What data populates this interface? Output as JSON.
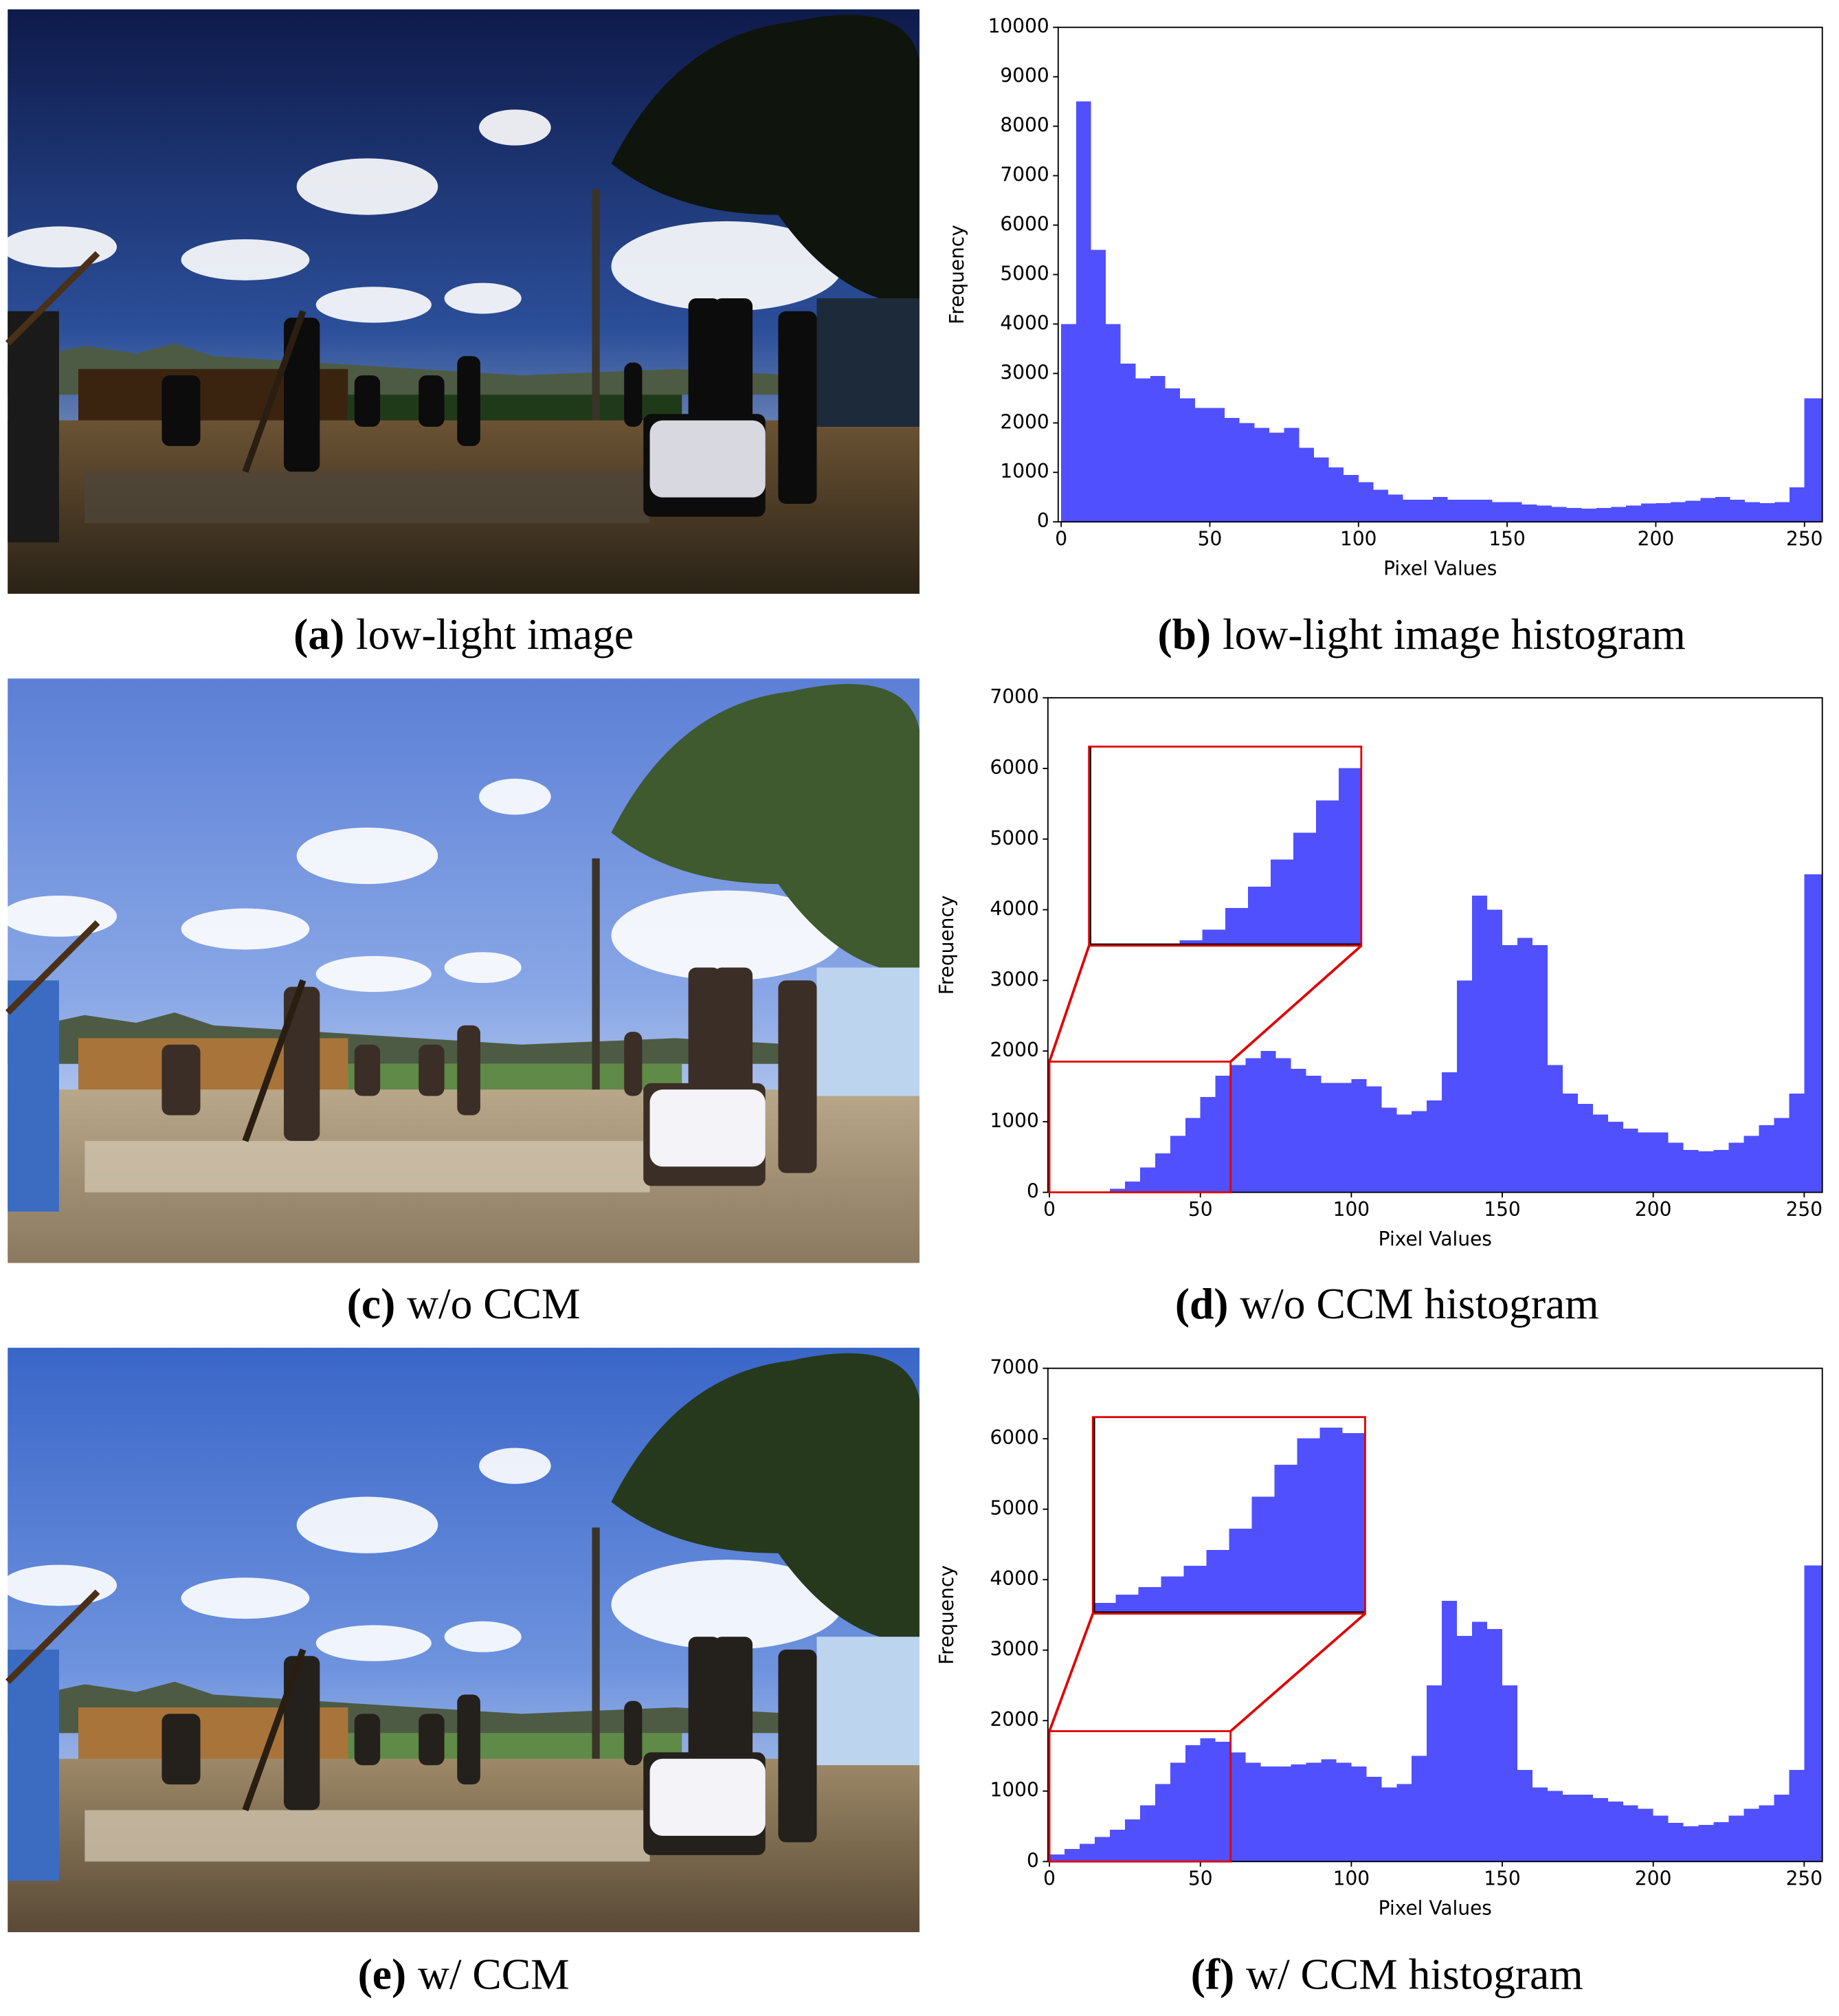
{
  "captions": [
    {
      "label": "(a)",
      "text": "low-light image"
    },
    {
      "label": "(b)",
      "text": "low-light image histogram"
    },
    {
      "label": "(c)",
      "text": "w/o CCM"
    },
    {
      "label": "(d)",
      "text": "w/o CCM histogram"
    },
    {
      "label": "(e)",
      "text": "w/ CCM"
    },
    {
      "label": "(f)",
      "text": "w/ CCM histogram"
    }
  ],
  "chart_data": [
    {
      "type": "histogram",
      "x_label": "Pixel Values",
      "y_label": "Frequency",
      "color": "#5050ff",
      "bins": [
        0,
        5,
        10,
        15,
        20,
        25,
        30,
        35,
        40,
        45,
        50,
        55,
        60,
        65,
        70,
        75,
        80,
        85,
        90,
        95,
        100,
        105,
        110,
        115,
        120,
        125,
        130,
        135,
        140,
        145,
        150,
        155,
        160,
        165,
        170,
        175,
        180,
        185,
        190,
        195,
        200,
        205,
        210,
        215,
        220,
        225,
        230,
        235,
        240,
        245,
        250,
        256
      ],
      "values": [
        4000,
        8500,
        5500,
        4000,
        3200,
        2900,
        2950,
        2700,
        2500,
        2300,
        2300,
        2100,
        2000,
        1900,
        1800,
        1900,
        1500,
        1300,
        1100,
        950,
        800,
        650,
        550,
        450,
        450,
        500,
        450,
        450,
        450,
        400,
        400,
        350,
        330,
        300,
        280,
        270,
        280,
        300,
        330,
        370,
        380,
        400,
        430,
        480,
        500,
        450,
        400,
        380,
        400,
        700,
        2500
      ],
      "xlim": [
        -1,
        256
      ],
      "ylim": [
        0,
        10000
      ],
      "xticks": [
        0,
        50,
        100,
        150,
        200,
        250
      ],
      "yticks": [
        0,
        1000,
        2000,
        3000,
        4000,
        5000,
        6000,
        7000,
        8000,
        9000,
        10000
      ]
    },
    {
      "type": "histogram",
      "x_label": "Pixel Values",
      "y_label": "Frequency",
      "color": "#5050ff",
      "bins": [
        0,
        5,
        10,
        15,
        20,
        25,
        30,
        35,
        40,
        45,
        50,
        55,
        60,
        65,
        70,
        75,
        80,
        85,
        90,
        95,
        100,
        105,
        110,
        115,
        120,
        125,
        130,
        135,
        140,
        145,
        150,
        155,
        160,
        165,
        170,
        175,
        180,
        185,
        190,
        195,
        200,
        205,
        210,
        215,
        220,
        225,
        230,
        235,
        240,
        245,
        250,
        256
      ],
      "values": [
        0,
        0,
        0,
        10,
        50,
        150,
        350,
        550,
        800,
        1050,
        1350,
        1650,
        1800,
        1900,
        2000,
        1900,
        1750,
        1650,
        1550,
        1550,
        1600,
        1500,
        1200,
        1100,
        1150,
        1300,
        1700,
        3000,
        4200,
        4000,
        3500,
        3600,
        3500,
        1800,
        1400,
        1250,
        1100,
        1000,
        900,
        850,
        850,
        700,
        600,
        580,
        600,
        700,
        800,
        950,
        1050,
        1400,
        4500
      ],
      "xlim": [
        -0.5,
        256
      ],
      "ylim": [
        0,
        7000
      ],
      "xticks": [
        0,
        50,
        100,
        150,
        200,
        250
      ],
      "yticks": [
        0,
        1000,
        2000,
        3000,
        4000,
        5000,
        6000,
        7000
      ],
      "zoom": {
        "xlim": [
          0,
          60
        ],
        "ylim": [
          0,
          1850
        ],
        "color": "#e00000"
      }
    },
    {
      "type": "histogram",
      "x_label": "Pixel Values",
      "y_label": "Frequency",
      "color": "#5050ff",
      "bins": [
        0,
        5,
        10,
        15,
        20,
        25,
        30,
        35,
        40,
        45,
        50,
        55,
        60,
        65,
        70,
        75,
        80,
        85,
        90,
        95,
        100,
        105,
        110,
        115,
        120,
        125,
        130,
        135,
        140,
        145,
        150,
        155,
        160,
        165,
        170,
        175,
        180,
        185,
        190,
        195,
        200,
        205,
        210,
        215,
        220,
        225,
        230,
        235,
        240,
        245,
        250,
        256
      ],
      "values": [
        100,
        180,
        250,
        350,
        450,
        600,
        800,
        1100,
        1400,
        1650,
        1750,
        1700,
        1550,
        1400,
        1350,
        1350,
        1380,
        1400,
        1450,
        1400,
        1350,
        1200,
        1050,
        1100,
        1500,
        2500,
        3700,
        3200,
        3400,
        3300,
        2500,
        1300,
        1050,
        1000,
        950,
        950,
        900,
        850,
        800,
        750,
        650,
        550,
        500,
        520,
        560,
        650,
        750,
        800,
        950,
        1300,
        4200
      ],
      "xlim": [
        -0.5,
        256
      ],
      "ylim": [
        0,
        7000
      ],
      "xticks": [
        0,
        50,
        100,
        150,
        200,
        250
      ],
      "yticks": [
        0,
        1000,
        2000,
        3000,
        4000,
        5000,
        6000,
        7000
      ],
      "zoom": {
        "xlim": [
          0,
          60
        ],
        "ylim": [
          0,
          1850
        ],
        "color": "#e00000"
      }
    }
  ]
}
